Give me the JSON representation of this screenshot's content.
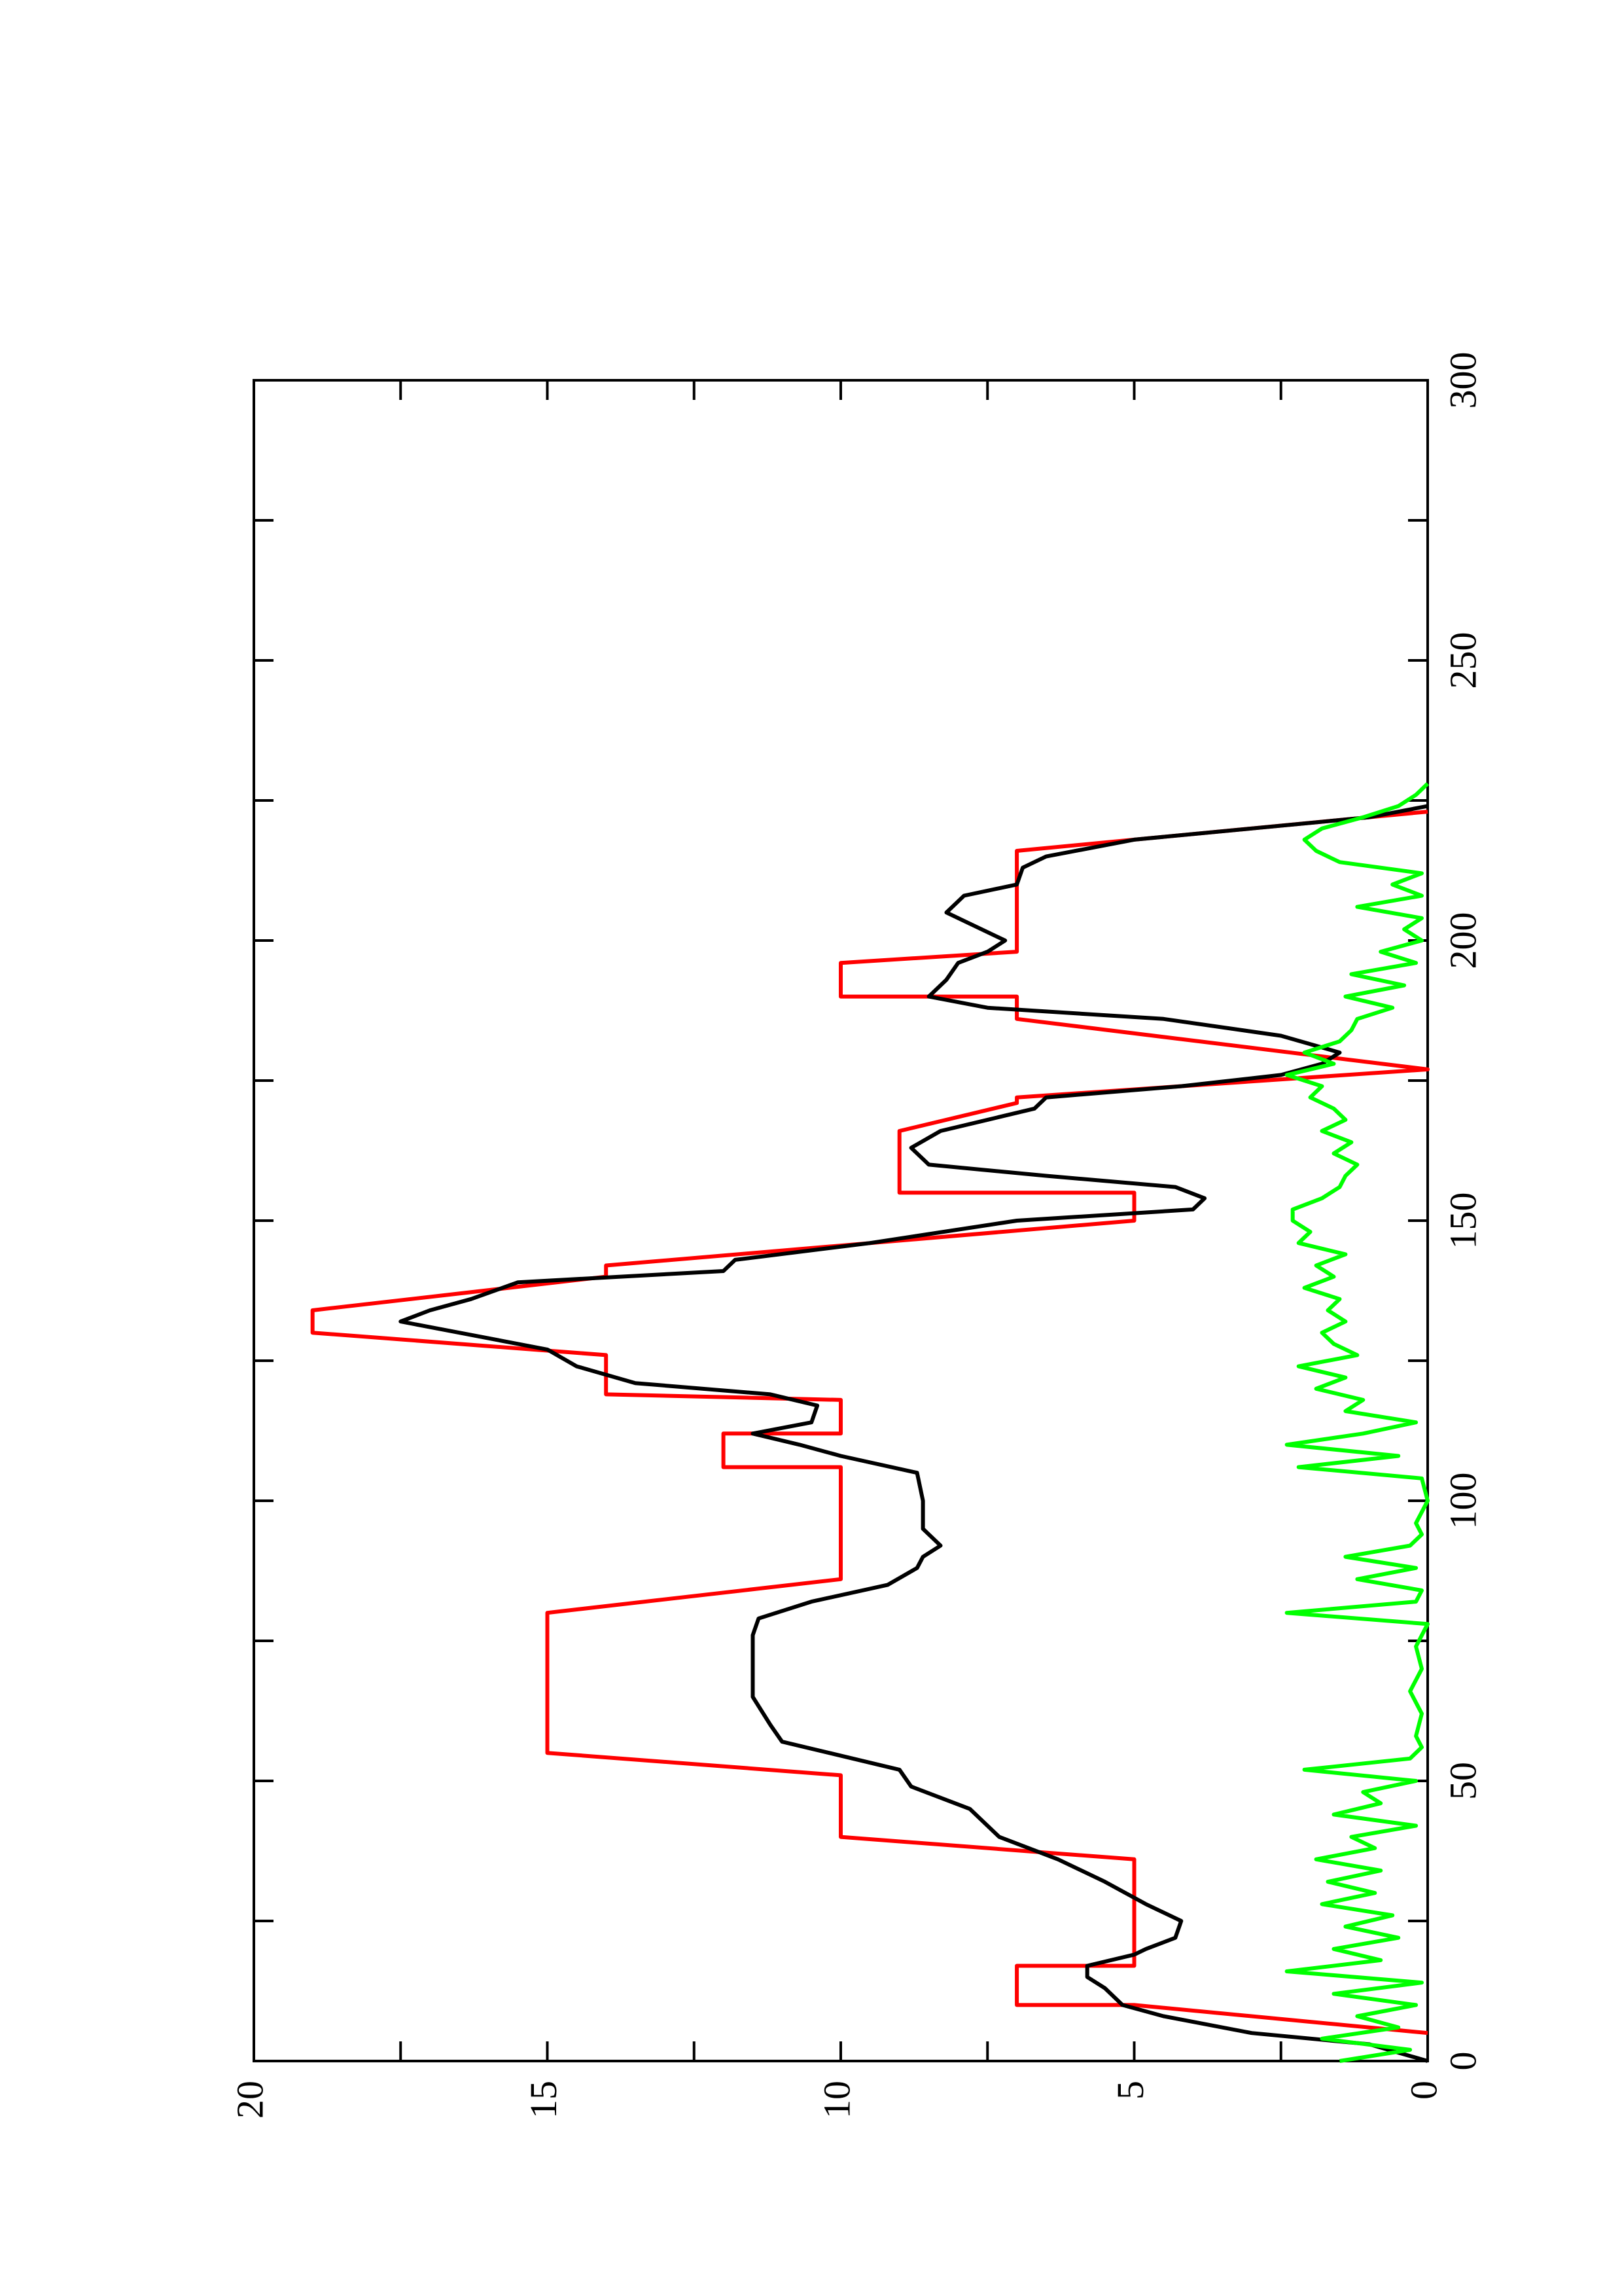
{
  "chart_data": {
    "type": "line",
    "xlim": [
      0,
      300
    ],
    "xticks": [
      0,
      50,
      100,
      150,
      200,
      250,
      300
    ],
    "xminor": [
      25,
      75,
      125,
      175,
      225,
      275
    ],
    "ylim": [
      0,
      20
    ],
    "yticks": [
      0,
      5,
      10,
      15,
      20
    ],
    "yminor": [
      2.5,
      7.5,
      12.5,
      17.5
    ],
    "series": [
      {
        "color": "#ff0000",
        "x": [
          5,
          10,
          10,
          17,
          17,
          36,
          40,
          51,
          55,
          80,
          86,
          106,
          106,
          112,
          112,
          118,
          119,
          126,
          126,
          130,
          134,
          140,
          142,
          150,
          155,
          155,
          166,
          171,
          172,
          177,
          186,
          190,
          190,
          196,
          198,
          216,
          223
        ],
        "values": [
          0,
          5,
          7,
          7,
          5,
          5,
          10,
          10,
          15,
          15,
          10,
          10,
          12,
          12,
          10,
          10,
          14,
          14,
          14,
          19,
          19,
          14,
          14,
          5,
          5,
          9,
          9,
          7,
          7,
          0,
          7,
          7,
          10,
          10,
          7,
          7,
          0
        ]
      },
      {
        "color": "#000000",
        "x": [
          0,
          3,
          5,
          8,
          10,
          13,
          15,
          17,
          19,
          20,
          22,
          25,
          28,
          32,
          36,
          40,
          45,
          49,
          52,
          55,
          57,
          60,
          65,
          70,
          76,
          79,
          82,
          85,
          88,
          90,
          92,
          95,
          100,
          105,
          108,
          110,
          112,
          114,
          117,
          119,
          121,
          124,
          127,
          130,
          132,
          134,
          136,
          139,
          141,
          143,
          146,
          150,
          152,
          154,
          156,
          158,
          160,
          163,
          166,
          168,
          170,
          172,
          174,
          176,
          178,
          180,
          183,
          186,
          188,
          190,
          193,
          196,
          198,
          200,
          203,
          205,
          208,
          210,
          213,
          215,
          218,
          220,
          222,
          224
        ],
        "values": [
          0,
          1,
          3,
          4.5,
          5.2,
          5.5,
          5.8,
          5.8,
          5,
          4.8,
          4.3,
          4.2,
          4.8,
          5.5,
          6.3,
          7.3,
          7.8,
          8.8,
          9,
          10.2,
          11,
          11.2,
          11.5,
          11.5,
          11.5,
          11.4,
          10.5,
          9.2,
          8.7,
          8.6,
          8.3,
          8.6,
          8.6,
          8.7,
          10,
          10.7,
          11.5,
          10.5,
          10.4,
          11.2,
          13.5,
          14.5,
          15,
          16.5,
          17.5,
          17,
          16.3,
          15.5,
          12,
          11.8,
          9.5,
          7,
          4,
          3.8,
          4.3,
          6.5,
          8.5,
          8.8,
          8.3,
          7.5,
          6.7,
          6.5,
          4.2,
          2.5,
          1.8,
          1.5,
          2.5,
          4.5,
          7.5,
          8.5,
          8.2,
          8,
          7.5,
          7.2,
          7.8,
          8.2,
          7.9,
          7,
          6.9,
          6.5,
          5,
          3,
          1,
          0
        ]
      },
      {
        "color": "#00ff00",
        "x": [
          0,
          2,
          4,
          6,
          8,
          10,
          12,
          14,
          16,
          18,
          20,
          22,
          24,
          26,
          28,
          30,
          32,
          34,
          36,
          38,
          40,
          42,
          44,
          46,
          48,
          50,
          52,
          54,
          56,
          58,
          62,
          66,
          70,
          74,
          78,
          80,
          82,
          84,
          86,
          88,
          90,
          92,
          94,
          96,
          100,
          104,
          106,
          108,
          110,
          112,
          114,
          116,
          118,
          120,
          122,
          124,
          126,
          128,
          130,
          132,
          134,
          136,
          138,
          140,
          142,
          144,
          146,
          148,
          150,
          152,
          154,
          156,
          158,
          160,
          162,
          164,
          166,
          168,
          170,
          172,
          174,
          176,
          178,
          180,
          182,
          184,
          186,
          188,
          190,
          192,
          194,
          196,
          198,
          200,
          202,
          204,
          206,
          208,
          210,
          212,
          214,
          216,
          218,
          220,
          222,
          224,
          226,
          228
        ],
        "values": [
          1.5,
          0.3,
          1.8,
          0.5,
          1.2,
          0.2,
          1.6,
          0.1,
          2.4,
          0.8,
          1.6,
          0.5,
          1.4,
          0.6,
          1.8,
          0.9,
          1.7,
          0.8,
          1.9,
          0.9,
          1.3,
          0.2,
          1.6,
          0.8,
          1.1,
          0.2,
          2.1,
          0.3,
          0.1,
          0.2,
          0.1,
          0.3,
          0.1,
          0.2,
          0,
          2.4,
          0.2,
          0.1,
          1.2,
          0.2,
          1.4,
          0.3,
          0.1,
          0.2,
          0,
          0.1,
          2.2,
          0.5,
          2.4,
          1.1,
          0.2,
          1.4,
          1.1,
          1.9,
          1.4,
          2.2,
          1.2,
          1.6,
          1.8,
          1.4,
          1.7,
          1.5,
          2.1,
          1.6,
          1.9,
          1.4,
          2.2,
          2.0,
          2.3,
          2.3,
          1.8,
          1.5,
          1.4,
          1.2,
          1.6,
          1.3,
          1.8,
          1.4,
          1.6,
          2.0,
          1.8,
          2.4,
          1.6,
          2.1,
          1.5,
          1.3,
          1.2,
          0.6,
          1.4,
          0.4,
          1.3,
          0.2,
          0.8,
          0.1,
          0.4,
          0.1,
          1.2,
          0.1,
          0.6,
          0.1,
          1.5,
          1.9,
          2.1,
          1.8,
          1.1,
          0.5,
          0.2,
          0
        ]
      }
    ]
  }
}
